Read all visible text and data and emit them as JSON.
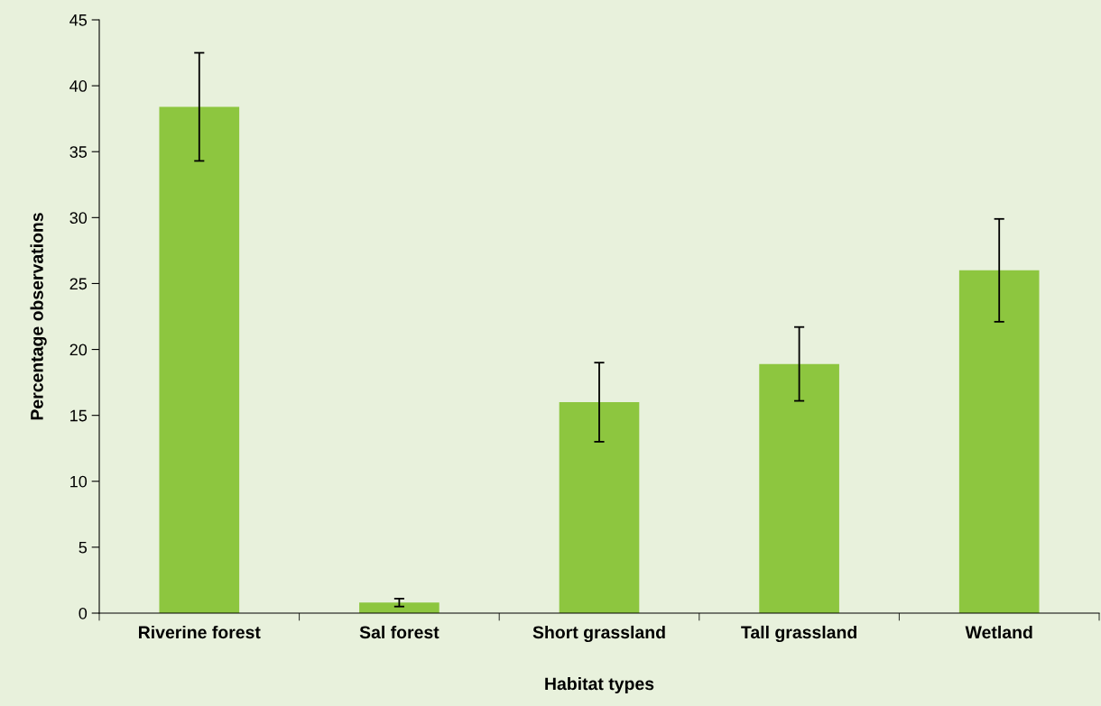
{
  "chart_data": {
    "type": "bar",
    "xlabel": "Habitat types",
    "ylabel": "Percentage observations",
    "categories": [
      "Riverine forest",
      "Sal forest",
      "Short grassland",
      "Tall grassland",
      "Wetland"
    ],
    "values": [
      38.4,
      0.8,
      16.0,
      18.9,
      26.0
    ],
    "errors": [
      4.1,
      0.3,
      3.0,
      2.8,
      3.9
    ],
    "color": "#8dc63f",
    "ylim": [
      0,
      45
    ],
    "yticks": [
      0,
      5,
      10,
      15,
      20,
      25,
      30,
      35,
      40,
      45
    ],
    "grid": false,
    "legend": false
  }
}
